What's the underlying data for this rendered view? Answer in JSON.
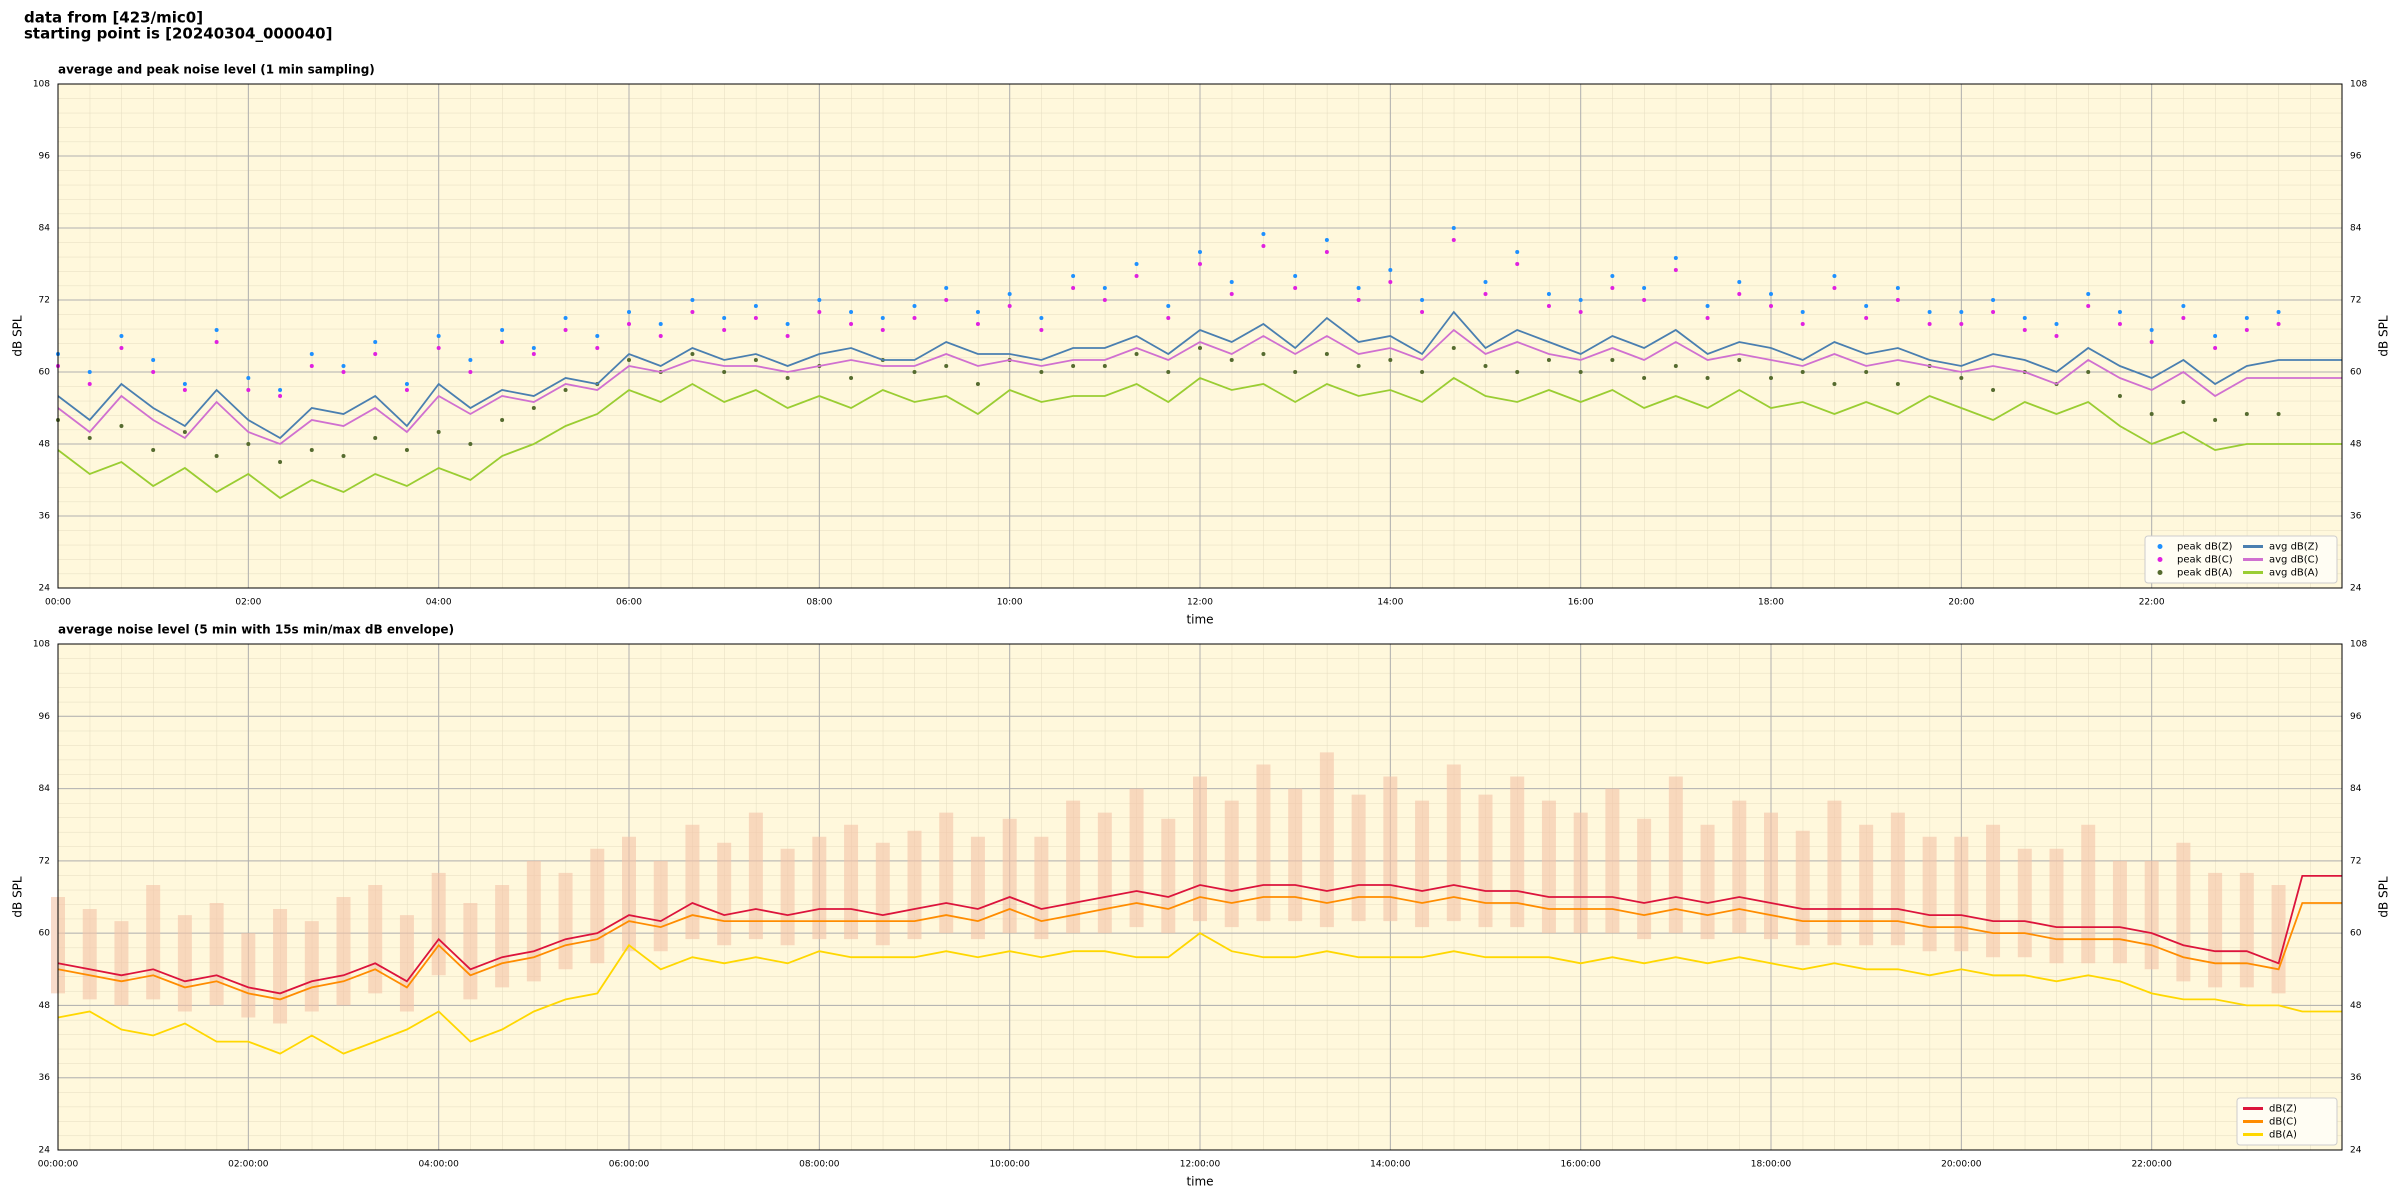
{
  "header": {
    "line1": "data from [423/mic0]",
    "line2": "starting point is [20240304_000040]"
  },
  "chart_data": [
    {
      "type": "line",
      "title": "average and peak noise level (1 min sampling)",
      "x_label": "time",
      "y_label": "dB SPL",
      "xlim": [
        0,
        1440
      ],
      "ylim": [
        24,
        108
      ],
      "yticks": [
        24,
        36,
        48,
        60,
        72,
        84,
        96,
        108
      ],
      "xticks": [
        {
          "value": 0,
          "label": "00:00"
        },
        {
          "value": 120,
          "label": "02:00"
        },
        {
          "value": 240,
          "label": "04:00"
        },
        {
          "value": 360,
          "label": "06:00"
        },
        {
          "value": 480,
          "label": "08:00"
        },
        {
          "value": 600,
          "label": "10:00"
        },
        {
          "value": 720,
          "label": "12:00"
        },
        {
          "value": 840,
          "label": "14:00"
        },
        {
          "value": 960,
          "label": "16:00"
        },
        {
          "value": 1080,
          "label": "18:00"
        },
        {
          "value": 1200,
          "label": "20:00"
        },
        {
          "value": 1320,
          "label": "22:00"
        }
      ],
      "grid": true,
      "legend": "lower right",
      "legend_columns": 2,
      "x": [
        0,
        20,
        40,
        60,
        80,
        100,
        120,
        140,
        160,
        180,
        200,
        220,
        240,
        260,
        280,
        300,
        320,
        340,
        360,
        380,
        400,
        420,
        440,
        460,
        480,
        500,
        520,
        540,
        560,
        580,
        600,
        620,
        640,
        660,
        680,
        700,
        720,
        740,
        760,
        780,
        800,
        820,
        840,
        860,
        880,
        900,
        920,
        940,
        960,
        980,
        1000,
        1020,
        1040,
        1060,
        1080,
        1100,
        1120,
        1140,
        1160,
        1180,
        1200,
        1220,
        1240,
        1260,
        1280,
        1300,
        1320,
        1340,
        1360,
        1380,
        1400,
        1440
      ],
      "series": [
        {
          "name": "peak dB(Z)",
          "type": "scatter",
          "color": "#1e90ff",
          "values": [
            63,
            60,
            66,
            62,
            58,
            67,
            59,
            57,
            63,
            61,
            65,
            58,
            66,
            62,
            67,
            64,
            69,
            66,
            70,
            68,
            72,
            69,
            71,
            68,
            72,
            70,
            69,
            71,
            74,
            70,
            73,
            69,
            76,
            74,
            78,
            71,
            80,
            75,
            83,
            76,
            82,
            74,
            77,
            72,
            84,
            75,
            80,
            73,
            72,
            76,
            74,
            79,
            71,
            75,
            73,
            70,
            76,
            71,
            74,
            70,
            70,
            72,
            69,
            68,
            73,
            70,
            67,
            71,
            66,
            69,
            70,
            null
          ]
        },
        {
          "name": "peak dB(C)",
          "type": "scatter",
          "color": "#e020e0",
          "values": [
            61,
            58,
            64,
            60,
            57,
            65,
            57,
            56,
            61,
            60,
            63,
            57,
            64,
            60,
            65,
            63,
            67,
            64,
            68,
            66,
            70,
            67,
            69,
            66,
            70,
            68,
            67,
            69,
            72,
            68,
            71,
            67,
            74,
            72,
            76,
            69,
            78,
            73,
            81,
            74,
            80,
            72,
            75,
            70,
            82,
            73,
            78,
            71,
            70,
            74,
            72,
            77,
            69,
            73,
            71,
            68,
            74,
            69,
            72,
            68,
            68,
            70,
            67,
            66,
            71,
            68,
            65,
            69,
            64,
            67,
            68,
            null
          ]
        },
        {
          "name": "peak dB(A)",
          "type": "scatter",
          "color": "#556b2f",
          "values": [
            52,
            49,
            51,
            47,
            50,
            46,
            48,
            45,
            47,
            46,
            49,
            47,
            50,
            48,
            52,
            54,
            57,
            58,
            62,
            60,
            63,
            60,
            62,
            59,
            61,
            59,
            62,
            60,
            61,
            58,
            62,
            60,
            61,
            61,
            63,
            60,
            64,
            62,
            63,
            60,
            63,
            61,
            62,
            60,
            64,
            61,
            60,
            62,
            60,
            62,
            59,
            61,
            59,
            62,
            59,
            60,
            58,
            60,
            58,
            61,
            59,
            57,
            60,
            58,
            60,
            56,
            53,
            55,
            52,
            53,
            53,
            null
          ]
        },
        {
          "name": "avg dB(Z)",
          "type": "line",
          "color": "#4a7fb0",
          "values": [
            56,
            52,
            58,
            54,
            51,
            57,
            52,
            49,
            54,
            53,
            56,
            51,
            58,
            54,
            57,
            56,
            59,
            58,
            63,
            61,
            64,
            62,
            63,
            61,
            63,
            64,
            62,
            62,
            65,
            63,
            63,
            62,
            64,
            64,
            66,
            63,
            67,
            65,
            68,
            64,
            69,
            65,
            66,
            63,
            70,
            64,
            67,
            65,
            63,
            66,
            64,
            67,
            63,
            65,
            64,
            62,
            65,
            63,
            64,
            62,
            61,
            63,
            62,
            60,
            64,
            61,
            59,
            62,
            58,
            61,
            62,
            62
          ]
        },
        {
          "name": "avg dB(C)",
          "type": "line",
          "color": "#d070d0",
          "values": [
            54,
            50,
            56,
            52,
            49,
            55,
            50,
            48,
            52,
            51,
            54,
            50,
            56,
            53,
            56,
            55,
            58,
            57,
            61,
            60,
            62,
            61,
            61,
            60,
            61,
            62,
            61,
            61,
            63,
            61,
            62,
            61,
            62,
            62,
            64,
            62,
            65,
            63,
            66,
            63,
            66,
            63,
            64,
            62,
            67,
            63,
            65,
            63,
            62,
            64,
            62,
            65,
            62,
            63,
            62,
            61,
            63,
            61,
            62,
            61,
            60,
            61,
            60,
            58,
            62,
            59,
            57,
            60,
            56,
            59,
            59,
            59
          ]
        },
        {
          "name": "avg dB(A)",
          "type": "line",
          "color": "#9acd32",
          "values": [
            47,
            43,
            45,
            41,
            44,
            40,
            43,
            39,
            42,
            40,
            43,
            41,
            44,
            42,
            46,
            48,
            51,
            53,
            57,
            55,
            58,
            55,
            57,
            54,
            56,
            54,
            57,
            55,
            56,
            53,
            57,
            55,
            56,
            56,
            58,
            55,
            59,
            57,
            58,
            55,
            58,
            56,
            57,
            55,
            59,
            56,
            55,
            57,
            55,
            57,
            54,
            56,
            54,
            57,
            54,
            55,
            53,
            55,
            53,
            56,
            54,
            52,
            55,
            53,
            55,
            51,
            48,
            50,
            47,
            48,
            48,
            48
          ]
        }
      ]
    },
    {
      "type": "line",
      "title": "average noise level (5 min with 15s min/max dB envelope)",
      "x_label": "time",
      "y_label": "dB SPL",
      "xlim": [
        0,
        1440
      ],
      "ylim": [
        24,
        108
      ],
      "yticks": [
        24,
        36,
        48,
        60,
        72,
        84,
        96,
        108
      ],
      "xticks": [
        {
          "value": 0,
          "label": "00:00:00"
        },
        {
          "value": 120,
          "label": "02:00:00"
        },
        {
          "value": 240,
          "label": "04:00:00"
        },
        {
          "value": 360,
          "label": "06:00:00"
        },
        {
          "value": 480,
          "label": "08:00:00"
        },
        {
          "value": 600,
          "label": "10:00:00"
        },
        {
          "value": 720,
          "label": "12:00:00"
        },
        {
          "value": 840,
          "label": "14:00:00"
        },
        {
          "value": 960,
          "label": "16:00:00"
        },
        {
          "value": 1080,
          "label": "18:00:00"
        },
        {
          "value": 1200,
          "label": "20:00:00"
        },
        {
          "value": 1320,
          "label": "22:00:00"
        }
      ],
      "grid": true,
      "legend": "lower right",
      "legend_columns": 1,
      "x": [
        0,
        20,
        40,
        60,
        80,
        100,
        120,
        140,
        160,
        180,
        200,
        220,
        240,
        260,
        280,
        300,
        320,
        340,
        360,
        380,
        400,
        420,
        440,
        460,
        480,
        500,
        520,
        540,
        560,
        580,
        600,
        620,
        640,
        660,
        680,
        700,
        720,
        740,
        760,
        780,
        800,
        820,
        840,
        860,
        880,
        900,
        920,
        940,
        960,
        980,
        1000,
        1020,
        1040,
        1060,
        1080,
        1100,
        1120,
        1140,
        1160,
        1180,
        1200,
        1220,
        1240,
        1260,
        1280,
        1300,
        1320,
        1340,
        1360,
        1380,
        1400,
        1415,
        1440
      ],
      "envelope": {
        "color": "#f5c4a8",
        "high": [
          66,
          64,
          62,
          68,
          63,
          65,
          60,
          64,
          62,
          66,
          68,
          63,
          70,
          65,
          68,
          72,
          70,
          74,
          76,
          72,
          78,
          75,
          80,
          74,
          76,
          78,
          75,
          77,
          80,
          76,
          79,
          76,
          82,
          80,
          84,
          79,
          86,
          82,
          88,
          84,
          90,
          83,
          86,
          82,
          88,
          83,
          86,
          82,
          80,
          84,
          79,
          86,
          78,
          82,
          80,
          77,
          82,
          78,
          80,
          76,
          76,
          78,
          74,
          74,
          78,
          72,
          72,
          75,
          70,
          70,
          68,
          null,
          null
        ],
        "low": [
          50,
          49,
          48,
          49,
          47,
          48,
          46,
          45,
          47,
          48,
          50,
          47,
          53,
          49,
          51,
          52,
          54,
          55,
          57,
          57,
          59,
          58,
          59,
          58,
          59,
          59,
          58,
          59,
          60,
          59,
          60,
          59,
          60,
          60,
          61,
          60,
          62,
          61,
          62,
          62,
          61,
          62,
          62,
          61,
          62,
          61,
          61,
          60,
          60,
          60,
          59,
          60,
          59,
          60,
          59,
          58,
          58,
          58,
          58,
          57,
          57,
          56,
          56,
          55,
          55,
          55,
          54,
          52,
          51,
          51,
          50,
          null,
          null
        ]
      },
      "series": [
        {
          "name": "dB(Z)",
          "type": "line",
          "color": "#dc143c",
          "values": [
            55,
            54,
            53,
            54,
            52,
            53,
            51,
            50,
            52,
            53,
            55,
            52,
            59,
            54,
            56,
            57,
            59,
            60,
            63,
            62,
            65,
            63,
            64,
            63,
            64,
            64,
            63,
            64,
            65,
            64,
            66,
            64,
            65,
            66,
            67,
            66,
            68,
            67,
            68,
            68,
            67,
            68,
            68,
            67,
            68,
            67,
            67,
            66,
            66,
            66,
            65,
            66,
            65,
            66,
            65,
            64,
            64,
            64,
            64,
            63,
            63,
            62,
            62,
            61,
            61,
            61,
            60,
            58,
            57,
            57,
            55,
            69.5,
            69.5
          ]
        },
        {
          "name": "dB(C)",
          "type": "line",
          "color": "#ff8c00",
          "values": [
            54,
            53,
            52,
            53,
            51,
            52,
            50,
            49,
            51,
            52,
            54,
            51,
            58,
            53,
            55,
            56,
            58,
            59,
            62,
            61,
            63,
            62,
            62,
            62,
            62,
            62,
            62,
            62,
            63,
            62,
            64,
            62,
            63,
            64,
            65,
            64,
            66,
            65,
            66,
            66,
            65,
            66,
            66,
            65,
            66,
            65,
            65,
            64,
            64,
            64,
            63,
            64,
            63,
            64,
            63,
            62,
            62,
            62,
            62,
            61,
            61,
            60,
            60,
            59,
            59,
            59,
            58,
            56,
            55,
            55,
            54,
            65,
            65
          ]
        },
        {
          "name": "dB(A)",
          "type": "line",
          "color": "#ffd700",
          "values": [
            46,
            47,
            44,
            43,
            45,
            42,
            42,
            40,
            43,
            40,
            42,
            44,
            47,
            42,
            44,
            47,
            49,
            50,
            58,
            54,
            56,
            55,
            56,
            55,
            57,
            56,
            56,
            56,
            57,
            56,
            57,
            56,
            57,
            57,
            56,
            56,
            60,
            57,
            56,
            56,
            57,
            56,
            56,
            56,
            57,
            56,
            56,
            56,
            55,
            56,
            55,
            56,
            55,
            56,
            55,
            54,
            55,
            54,
            54,
            53,
            54,
            53,
            53,
            52,
            53,
            52,
            50,
            49,
            49,
            48,
            48,
            47,
            47
          ]
        }
      ]
    }
  ]
}
